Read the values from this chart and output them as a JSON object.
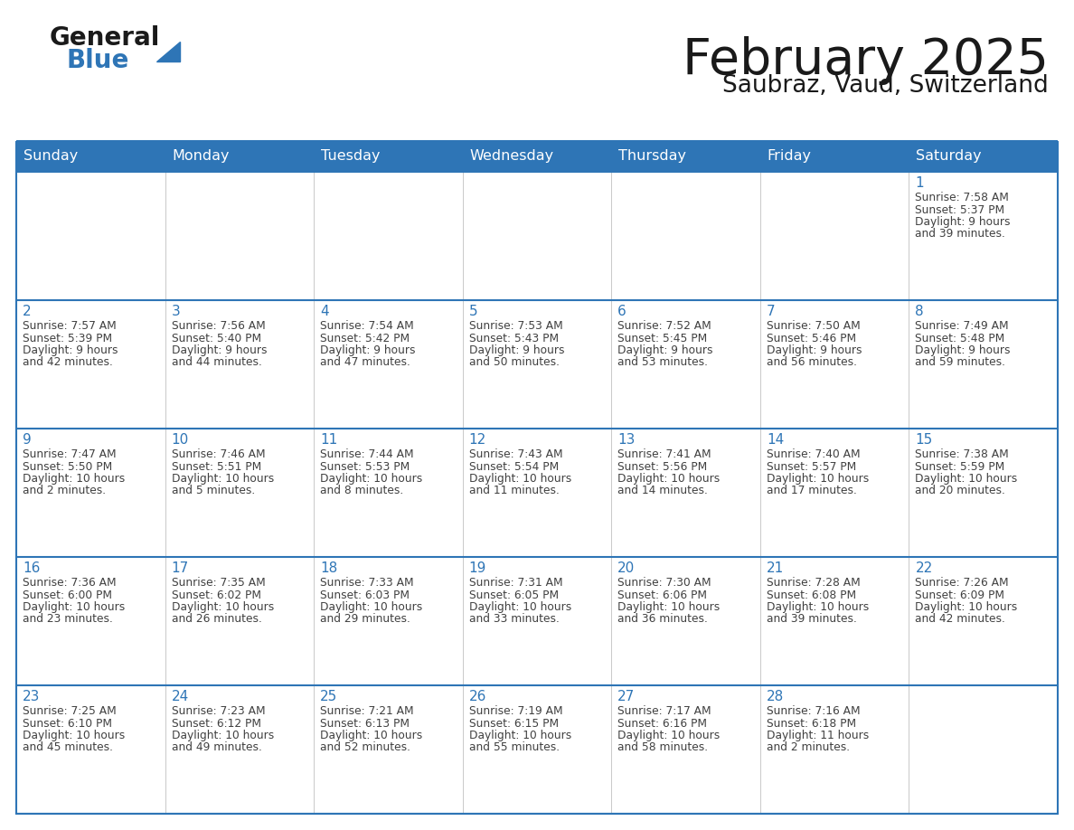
{
  "title": "February 2025",
  "subtitle": "Saubraz, Vaud, Switzerland",
  "header_color": "#2E75B6",
  "header_text_color": "#FFFFFF",
  "day_names": [
    "Sunday",
    "Monday",
    "Tuesday",
    "Wednesday",
    "Thursday",
    "Friday",
    "Saturday"
  ],
  "cell_bg_color": "#FFFFFF",
  "border_color": "#2E75B6",
  "text_color": "#404040",
  "day_num_color": "#2E75B6",
  "logo_color1": "#1a1a1a",
  "logo_color2": "#2E75B6",
  "logo_triangle_color": "#2E75B6",
  "calendar": [
    [
      null,
      null,
      null,
      null,
      null,
      null,
      {
        "day": 1,
        "sunrise": "7:58 AM",
        "sunset": "5:37 PM",
        "daylight": "9 hours\nand 39 minutes."
      }
    ],
    [
      {
        "day": 2,
        "sunrise": "7:57 AM",
        "sunset": "5:39 PM",
        "daylight": "9 hours\nand 42 minutes."
      },
      {
        "day": 3,
        "sunrise": "7:56 AM",
        "sunset": "5:40 PM",
        "daylight": "9 hours\nand 44 minutes."
      },
      {
        "day": 4,
        "sunrise": "7:54 AM",
        "sunset": "5:42 PM",
        "daylight": "9 hours\nand 47 minutes."
      },
      {
        "day": 5,
        "sunrise": "7:53 AM",
        "sunset": "5:43 PM",
        "daylight": "9 hours\nand 50 minutes."
      },
      {
        "day": 6,
        "sunrise": "7:52 AM",
        "sunset": "5:45 PM",
        "daylight": "9 hours\nand 53 minutes."
      },
      {
        "day": 7,
        "sunrise": "7:50 AM",
        "sunset": "5:46 PM",
        "daylight": "9 hours\nand 56 minutes."
      },
      {
        "day": 8,
        "sunrise": "7:49 AM",
        "sunset": "5:48 PM",
        "daylight": "9 hours\nand 59 minutes."
      }
    ],
    [
      {
        "day": 9,
        "sunrise": "7:47 AM",
        "sunset": "5:50 PM",
        "daylight": "10 hours\nand 2 minutes."
      },
      {
        "day": 10,
        "sunrise": "7:46 AM",
        "sunset": "5:51 PM",
        "daylight": "10 hours\nand 5 minutes."
      },
      {
        "day": 11,
        "sunrise": "7:44 AM",
        "sunset": "5:53 PM",
        "daylight": "10 hours\nand 8 minutes."
      },
      {
        "day": 12,
        "sunrise": "7:43 AM",
        "sunset": "5:54 PM",
        "daylight": "10 hours\nand 11 minutes."
      },
      {
        "day": 13,
        "sunrise": "7:41 AM",
        "sunset": "5:56 PM",
        "daylight": "10 hours\nand 14 minutes."
      },
      {
        "day": 14,
        "sunrise": "7:40 AM",
        "sunset": "5:57 PM",
        "daylight": "10 hours\nand 17 minutes."
      },
      {
        "day": 15,
        "sunrise": "7:38 AM",
        "sunset": "5:59 PM",
        "daylight": "10 hours\nand 20 minutes."
      }
    ],
    [
      {
        "day": 16,
        "sunrise": "7:36 AM",
        "sunset": "6:00 PM",
        "daylight": "10 hours\nand 23 minutes."
      },
      {
        "day": 17,
        "sunrise": "7:35 AM",
        "sunset": "6:02 PM",
        "daylight": "10 hours\nand 26 minutes."
      },
      {
        "day": 18,
        "sunrise": "7:33 AM",
        "sunset": "6:03 PM",
        "daylight": "10 hours\nand 29 minutes."
      },
      {
        "day": 19,
        "sunrise": "7:31 AM",
        "sunset": "6:05 PM",
        "daylight": "10 hours\nand 33 minutes."
      },
      {
        "day": 20,
        "sunrise": "7:30 AM",
        "sunset": "6:06 PM",
        "daylight": "10 hours\nand 36 minutes."
      },
      {
        "day": 21,
        "sunrise": "7:28 AM",
        "sunset": "6:08 PM",
        "daylight": "10 hours\nand 39 minutes."
      },
      {
        "day": 22,
        "sunrise": "7:26 AM",
        "sunset": "6:09 PM",
        "daylight": "10 hours\nand 42 minutes."
      }
    ],
    [
      {
        "day": 23,
        "sunrise": "7:25 AM",
        "sunset": "6:10 PM",
        "daylight": "10 hours\nand 45 minutes."
      },
      {
        "day": 24,
        "sunrise": "7:23 AM",
        "sunset": "6:12 PM",
        "daylight": "10 hours\nand 49 minutes."
      },
      {
        "day": 25,
        "sunrise": "7:21 AM",
        "sunset": "6:13 PM",
        "daylight": "10 hours\nand 52 minutes."
      },
      {
        "day": 26,
        "sunrise": "7:19 AM",
        "sunset": "6:15 PM",
        "daylight": "10 hours\nand 55 minutes."
      },
      {
        "day": 27,
        "sunrise": "7:17 AM",
        "sunset": "6:16 PM",
        "daylight": "10 hours\nand 58 minutes."
      },
      {
        "day": 28,
        "sunrise": "7:16 AM",
        "sunset": "6:18 PM",
        "daylight": "11 hours\nand 2 minutes."
      },
      null
    ]
  ]
}
